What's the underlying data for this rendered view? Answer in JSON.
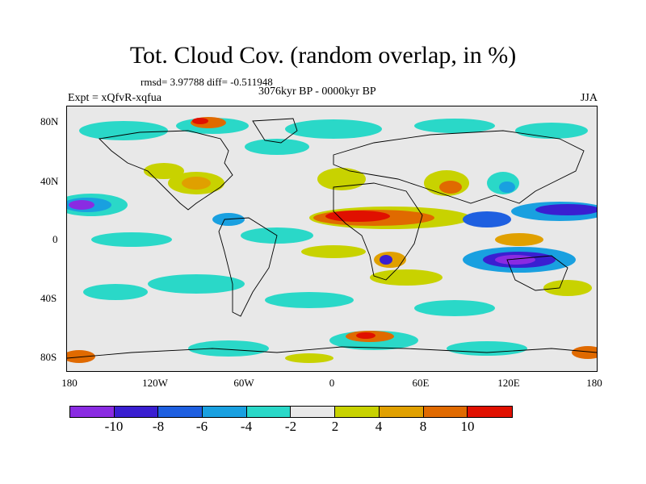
{
  "title": "Tot. Cloud Cov. (random overlap, in %)",
  "stats": "rmsd= 3.97788 diff= -0.511948",
  "period": "3076kyr BP - 0000kyr BP",
  "experiment": "Expt = xQfvR-xqfua",
  "season": "JJA",
  "y_axis_labels": [
    "80N",
    "40N",
    "0",
    "40S",
    "80S"
  ],
  "x_axis_labels": [
    "180",
    "120W",
    "60W",
    "0",
    "60E",
    "120E",
    "180"
  ],
  "colorbar": {
    "colors": [
      "#8a2be2",
      "#3a1fd1",
      "#1e5fe0",
      "#19a0e0",
      "#2ad8c8",
      "#e8e8e8",
      "#c8d200",
      "#e0a000",
      "#e06a00",
      "#e01000"
    ],
    "labels": [
      "-10",
      "-8",
      "-6",
      "-4",
      "-2",
      "2",
      "4",
      "8",
      "10"
    ]
  },
  "map_data": {
    "type": "filled-contour",
    "lon_range": [
      -180,
      180
    ],
    "lat_range": [
      -90,
      90
    ],
    "variable": "Tot. Cloud Cov.",
    "units": "%",
    "levels": [
      -10,
      -8,
      -6,
      -4,
      -2,
      2,
      4,
      8,
      10
    ]
  }
}
